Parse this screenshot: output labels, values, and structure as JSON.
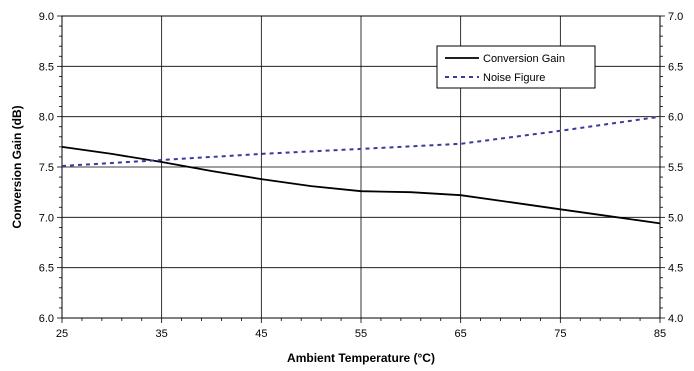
{
  "chart_data": {
    "type": "line",
    "title": "",
    "xlabel": "Ambient Temperature (°C)",
    "ylabel": "Conversion Gain (dB)",
    "y2label": "",
    "x_ticks": [
      "25",
      "35",
      "45",
      "55",
      "65",
      "75",
      "85"
    ],
    "y_ticks": [
      "6.0",
      "6.5",
      "7.0",
      "7.5",
      "8.0",
      "8.5",
      "9.0"
    ],
    "y2_ticks": [
      "4.0",
      "4.5",
      "5.0",
      "5.5",
      "6.0",
      "6.5",
      "7.0"
    ],
    "xlim": [
      25,
      85
    ],
    "ylim": [
      6.0,
      9.0
    ],
    "y2lim": [
      4.0,
      7.0
    ],
    "grid": true,
    "legend": "top-right",
    "series": [
      {
        "name": "Conversion Gain",
        "axis": "left",
        "color": "#000000",
        "style": "solid",
        "x": [
          25,
          30,
          35,
          40,
          45,
          50,
          55,
          60,
          65,
          70,
          75,
          80,
          85
        ],
        "y": [
          7.7,
          7.63,
          7.55,
          7.46,
          7.38,
          7.31,
          7.26,
          7.25,
          7.22,
          7.15,
          7.08,
          7.01,
          6.94
        ]
      },
      {
        "name": "Noise Figure",
        "axis": "right",
        "color": "#3a3a9a",
        "style": "dashed",
        "x": [
          25,
          35,
          45,
          55,
          65,
          75,
          85
        ],
        "y": [
          5.51,
          5.57,
          5.63,
          5.68,
          5.73,
          5.86,
          6.0
        ]
      }
    ]
  }
}
